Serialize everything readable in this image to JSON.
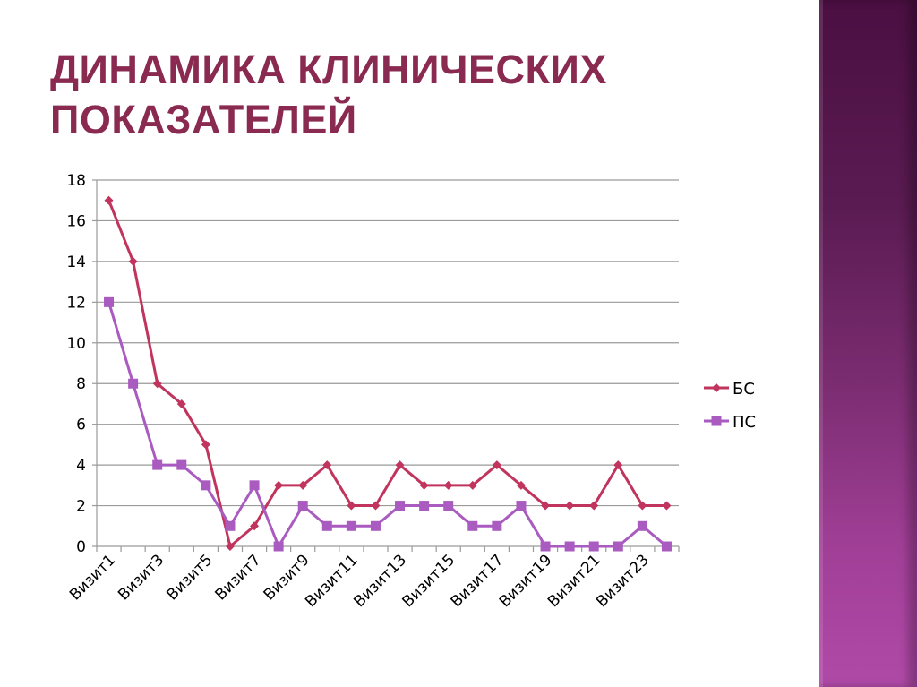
{
  "slide": {
    "title_line1": "ДИНАМИКА КЛИНИЧЕСКИХ",
    "title_line2": "ПОКАЗАТЕЛЕЙ",
    "title_color": "#8a2a50",
    "panel_colors": [
      "#4b0f42",
      "#b04aa8"
    ]
  },
  "chart_data": {
    "type": "line",
    "title": "Динамика клинических показателей",
    "xlabel": "",
    "ylabel": "",
    "ylim": [
      0,
      18
    ],
    "yticks": [
      0,
      2,
      4,
      6,
      8,
      10,
      12,
      14,
      16,
      18
    ],
    "grid": true,
    "legend_position": "right",
    "categories": [
      "Визит1",
      "Визит2",
      "Визит3",
      "Визит4",
      "Визит5",
      "Визит6",
      "Визит7",
      "Визит8",
      "Визит9",
      "Визит10",
      "Визит11",
      "Визит12",
      "Визит13",
      "Визит14",
      "Визит15",
      "Визит16",
      "Визит17",
      "Визит18",
      "Визит19",
      "Визит20",
      "Визит21",
      "Визит22",
      "Визит23",
      "Визит24"
    ],
    "visible_xticklabels": [
      "Визит1",
      "Визит3",
      "Визит5",
      "Визит7",
      "Визит9",
      "Визит11",
      "Визит13",
      "Визит15",
      "Визит17",
      "Визит19",
      "Визит21",
      "Визит23"
    ],
    "series": [
      {
        "name": "БС",
        "color": "#c0345e",
        "marker": "diamond",
        "values": [
          17,
          14,
          8,
          7,
          5,
          0,
          1,
          3,
          3,
          4,
          2,
          2,
          4,
          3,
          3,
          3,
          4,
          3,
          2,
          2,
          2,
          4,
          2,
          2
        ]
      },
      {
        "name": "ПС",
        "color": "#a95bc0",
        "marker": "square",
        "values": [
          12,
          8,
          4,
          4,
          3,
          1,
          3,
          0,
          2,
          1,
          1,
          1,
          2,
          2,
          2,
          1,
          1,
          2,
          0,
          0,
          0,
          0,
          1,
          0
        ]
      }
    ]
  }
}
